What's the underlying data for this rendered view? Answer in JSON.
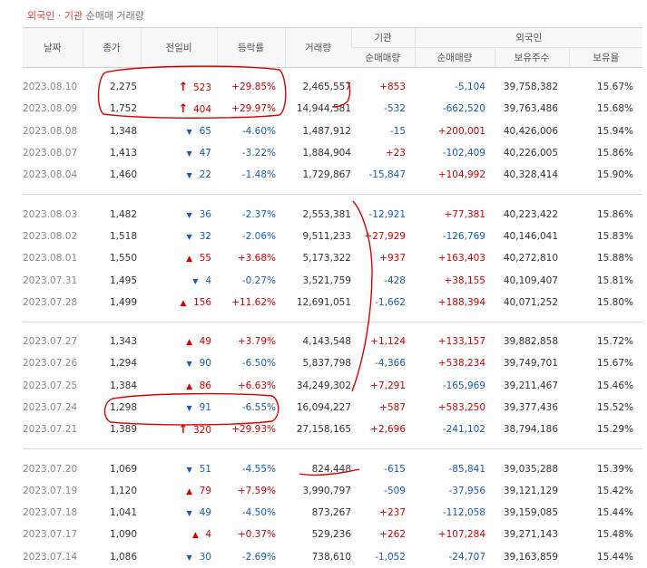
{
  "title": {
    "part1": "외국인",
    "sep": " · ",
    "part2": "기관",
    "part3": " 순매매 거래량"
  },
  "headers": {
    "date": "날짜",
    "close": "종가",
    "change": "전일비",
    "rate": "등락률",
    "volume": "거래량",
    "inst_group": "기관",
    "foreign_group": "외국인",
    "inst_net": "순매매량",
    "foreign_net": "순매매량",
    "holdings": "보유주수",
    "ratio": "보유율"
  },
  "groups": [
    [
      {
        "date": "2023.08.10",
        "close": "2,275",
        "dir": "limit-up",
        "change": "523",
        "rate": "+29.85%",
        "volume": "2,465,557",
        "inst": "+853",
        "foreign": "-5,104",
        "holdings": "39,758,382",
        "ratio": "15.67%"
      },
      {
        "date": "2023.08.09",
        "close": "1,752",
        "dir": "limit-up",
        "change": "404",
        "rate": "+29.97%",
        "volume": "14,944,581",
        "inst": "-532",
        "foreign": "-662,520",
        "holdings": "39,763,486",
        "ratio": "15.68%"
      },
      {
        "date": "2023.08.08",
        "close": "1,348",
        "dir": "down",
        "change": "65",
        "rate": "-4.60%",
        "volume": "1,487,912",
        "inst": "-15",
        "foreign": "+200,001",
        "holdings": "40,426,006",
        "ratio": "15.94%"
      },
      {
        "date": "2023.08.07",
        "close": "1,413",
        "dir": "down",
        "change": "47",
        "rate": "-3.22%",
        "volume": "1,884,904",
        "inst": "+23",
        "foreign": "-102,409",
        "holdings": "40,226,005",
        "ratio": "15.86%"
      },
      {
        "date": "2023.08.04",
        "close": "1,460",
        "dir": "down",
        "change": "22",
        "rate": "-1.48%",
        "volume": "1,729,867",
        "inst": "-15,847",
        "foreign": "+104,992",
        "holdings": "40,328,414",
        "ratio": "15.90%"
      }
    ],
    [
      {
        "date": "2023.08.03",
        "close": "1,482",
        "dir": "down",
        "change": "36",
        "rate": "-2.37%",
        "volume": "2,553,381",
        "inst": "-12,921",
        "foreign": "+77,381",
        "holdings": "40,223,422",
        "ratio": "15.86%"
      },
      {
        "date": "2023.08.02",
        "close": "1,518",
        "dir": "down",
        "change": "32",
        "rate": "-2.06%",
        "volume": "9,511,233",
        "inst": "+27,929",
        "foreign": "-126,769",
        "holdings": "40,146,041",
        "ratio": "15.83%"
      },
      {
        "date": "2023.08.01",
        "close": "1,550",
        "dir": "up",
        "change": "55",
        "rate": "+3.68%",
        "volume": "5,173,322",
        "inst": "+937",
        "foreign": "+163,403",
        "holdings": "40,272,810",
        "ratio": "15.88%"
      },
      {
        "date": "2023.07.31",
        "close": "1,495",
        "dir": "down",
        "change": "4",
        "rate": "-0.27%",
        "volume": "3,521,759",
        "inst": "-428",
        "foreign": "+38,155",
        "holdings": "40,109,407",
        "ratio": "15.81%"
      },
      {
        "date": "2023.07.28",
        "close": "1,499",
        "dir": "up",
        "change": "156",
        "rate": "+11.62%",
        "volume": "12,691,051",
        "inst": "-1,662",
        "foreign": "+188,394",
        "holdings": "40,071,252",
        "ratio": "15.80%"
      }
    ],
    [
      {
        "date": "2023.07.27",
        "close": "1,343",
        "dir": "up",
        "change": "49",
        "rate": "+3.79%",
        "volume": "4,143,548",
        "inst": "+1,124",
        "foreign": "+133,157",
        "holdings": "39,882,858",
        "ratio": "15.72%"
      },
      {
        "date": "2023.07.26",
        "close": "1,294",
        "dir": "down",
        "change": "90",
        "rate": "-6.50%",
        "volume": "5,837,798",
        "inst": "-4,366",
        "foreign": "+538,234",
        "holdings": "39,749,701",
        "ratio": "15.67%"
      },
      {
        "date": "2023.07.25",
        "close": "1,384",
        "dir": "up",
        "change": "86",
        "rate": "+6.63%",
        "volume": "34,249,302",
        "inst": "+7,291",
        "foreign": "-165,969",
        "holdings": "39,211,467",
        "ratio": "15.46%"
      },
      {
        "date": "2023.07.24",
        "close": "1,298",
        "dir": "down",
        "change": "91",
        "rate": "-6.55%",
        "volume": "16,094,227",
        "inst": "+587",
        "foreign": "+583,250",
        "holdings": "39,377,436",
        "ratio": "15.52%"
      },
      {
        "date": "2023.07.21",
        "close": "1,389",
        "dir": "limit-up",
        "change": "320",
        "rate": "+29.93%",
        "volume": "27,158,165",
        "inst": "+2,696",
        "foreign": "-241,102",
        "holdings": "38,794,186",
        "ratio": "15.29%"
      }
    ],
    [
      {
        "date": "2023.07.20",
        "close": "1,069",
        "dir": "down",
        "change": "51",
        "rate": "-4.55%",
        "volume": "824,448",
        "inst": "-615",
        "foreign": "-85,841",
        "holdings": "39,035,288",
        "ratio": "15.39%"
      },
      {
        "date": "2023.07.19",
        "close": "1,120",
        "dir": "up",
        "change": "79",
        "rate": "+7.59%",
        "volume": "3,990,797",
        "inst": "-509",
        "foreign": "-37,956",
        "holdings": "39,121,129",
        "ratio": "15.42%"
      },
      {
        "date": "2023.07.18",
        "close": "1,041",
        "dir": "down",
        "change": "49",
        "rate": "-4.50%",
        "volume": "873,267",
        "inst": "+237",
        "foreign": "-112,058",
        "holdings": "39,159,085",
        "ratio": "15.44%"
      },
      {
        "date": "2023.07.17",
        "close": "1,090",
        "dir": "up",
        "change": "4",
        "rate": "+0.37%",
        "volume": "529,236",
        "inst": "+262",
        "foreign": "+107,284",
        "holdings": "39,271,143",
        "ratio": "15.48%"
      },
      {
        "date": "2023.07.14",
        "close": "1,086",
        "dir": "down",
        "change": "30",
        "rate": "-2.69%",
        "volume": "738,610",
        "inst": "-1,052",
        "foreign": "-24,707",
        "holdings": "39,163,859",
        "ratio": "15.44%"
      }
    ]
  ],
  "colors": {
    "up": "#d60000",
    "down": "#1a5bb8",
    "annotation": "#e00000"
  },
  "icons": {
    "up": "up-triangle-icon",
    "down": "down-triangle-icon",
    "limit-up": "limit-up-arrow-icon"
  }
}
